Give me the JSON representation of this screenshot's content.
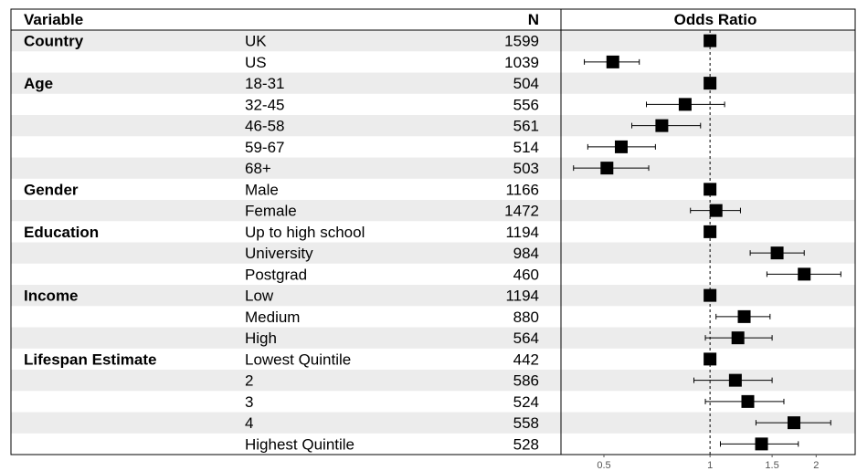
{
  "header": {
    "variable_label": "Variable",
    "n_label": "N",
    "or_label": "Odds Ratio"
  },
  "chart_data": {
    "type": "forest",
    "x_scale": "log",
    "xlim": [
      0.38,
      2.55
    ],
    "reference_line": 1,
    "x_ticks": [
      {
        "value": 0.5,
        "label": "0.5"
      },
      {
        "value": 1,
        "label": "1"
      },
      {
        "value": 1.5,
        "label": "1.5"
      },
      {
        "value": 2,
        "label": "2"
      }
    ],
    "rows": [
      {
        "group": "Country",
        "level": "UK",
        "n": "1599",
        "or": 1.0,
        "lo": null,
        "hi": null
      },
      {
        "group": "",
        "level": "US",
        "n": "1039",
        "or": 0.53,
        "lo": 0.44,
        "hi": 0.63
      },
      {
        "group": "Age",
        "level": "18-31",
        "n": "504",
        "or": 1.0,
        "lo": null,
        "hi": null
      },
      {
        "group": "",
        "level": "32-45",
        "n": "556",
        "or": 0.85,
        "lo": 0.66,
        "hi": 1.1
      },
      {
        "group": "",
        "level": "46-58",
        "n": "561",
        "or": 0.73,
        "lo": 0.6,
        "hi": 0.94
      },
      {
        "group": "",
        "level": "59-67",
        "n": "514",
        "or": 0.56,
        "lo": 0.45,
        "hi": 0.7
      },
      {
        "group": "",
        "level": "68+",
        "n": "503",
        "or": 0.51,
        "lo": 0.41,
        "hi": 0.67
      },
      {
        "group": "Gender",
        "level": "Male",
        "n": "1166",
        "or": 1.0,
        "lo": null,
        "hi": null
      },
      {
        "group": "",
        "level": "Female",
        "n": "1472",
        "or": 1.04,
        "lo": 0.88,
        "hi": 1.22
      },
      {
        "group": "Education",
        "level": "Up to high school",
        "n": "1194",
        "or": 1.0,
        "lo": null,
        "hi": null
      },
      {
        "group": "",
        "level": "University",
        "n": "984",
        "or": 1.55,
        "lo": 1.3,
        "hi": 1.85
      },
      {
        "group": "",
        "level": "Postgrad",
        "n": "460",
        "or": 1.85,
        "lo": 1.45,
        "hi": 2.35
      },
      {
        "group": "Income",
        "level": "Low",
        "n": "1194",
        "or": 1.0,
        "lo": null,
        "hi": null
      },
      {
        "group": "",
        "level": "Medium",
        "n": "880",
        "or": 1.25,
        "lo": 1.04,
        "hi": 1.48
      },
      {
        "group": "",
        "level": "High",
        "n": "564",
        "or": 1.2,
        "lo": 0.97,
        "hi": 1.5
      },
      {
        "group": "Lifespan Estimate",
        "level": "Lowest Quintile",
        "n": "442",
        "or": 1.0,
        "lo": null,
        "hi": null
      },
      {
        "group": "",
        "level": "2",
        "n": "586",
        "or": 1.18,
        "lo": 0.9,
        "hi": 1.5
      },
      {
        "group": "",
        "level": "3",
        "n": "524",
        "or": 1.28,
        "lo": 0.97,
        "hi": 1.62
      },
      {
        "group": "",
        "level": "4",
        "n": "558",
        "or": 1.73,
        "lo": 1.35,
        "hi": 2.2
      },
      {
        "group": "",
        "level": "Highest Quintile",
        "n": "528",
        "or": 1.4,
        "lo": 1.07,
        "hi": 1.78
      }
    ]
  }
}
